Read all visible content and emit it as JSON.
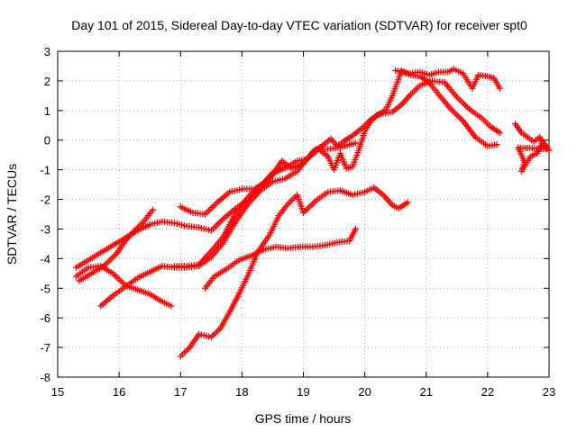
{
  "chart_data": {
    "type": "scatter",
    "title": "Day 101 of 2015, Sidereal Day-to-day VTEC variation (SDTVAR) for receiver spt0",
    "xlabel": "GPS time / hours",
    "ylabel": "SDTVAR / TECUs",
    "xlim": [
      15,
      23
    ],
    "ylim": [
      -8,
      3
    ],
    "xticks": [
      15,
      16,
      17,
      18,
      19,
      20,
      21,
      22,
      23
    ],
    "yticks": [
      -8,
      -7,
      -6,
      -5,
      -4,
      -3,
      -2,
      -1,
      0,
      1,
      2,
      3
    ],
    "grid": true,
    "marker": "plus",
    "color": "#ff0000",
    "series": [
      {
        "name": "track-a",
        "points": [
          [
            15.3,
            -4.6
          ],
          [
            15.5,
            -4.3
          ],
          [
            15.7,
            -4.25
          ],
          [
            15.9,
            -4.5
          ],
          [
            16.1,
            -4.9
          ],
          [
            16.3,
            -5.05
          ],
          [
            16.5,
            -5.2
          ],
          [
            16.7,
            -5.45
          ],
          [
            16.85,
            -5.6
          ]
        ]
      },
      {
        "name": "track-b",
        "points": [
          [
            15.3,
            -4.3
          ],
          [
            15.5,
            -4.05
          ],
          [
            15.7,
            -3.8
          ],
          [
            15.9,
            -3.55
          ],
          [
            16.1,
            -3.3
          ],
          [
            16.3,
            -3.05
          ],
          [
            16.5,
            -2.85
          ],
          [
            16.7,
            -2.75
          ],
          [
            16.9,
            -2.8
          ],
          [
            17.1,
            -2.9
          ],
          [
            17.3,
            -2.95
          ],
          [
            17.5,
            -3.05
          ],
          [
            17.7,
            -2.65
          ],
          [
            17.9,
            -2.3
          ],
          [
            18.1,
            -2.0
          ],
          [
            18.3,
            -1.6
          ],
          [
            18.5,
            -1.15
          ],
          [
            18.65,
            -0.7
          ],
          [
            18.8,
            -0.95
          ],
          [
            19.0,
            -0.8
          ],
          [
            19.15,
            -0.4
          ],
          [
            19.3,
            -0.2
          ],
          [
            19.45,
            0.05
          ],
          [
            19.55,
            -0.2
          ],
          [
            19.65,
            -0.05
          ],
          [
            19.8,
            0.15
          ],
          [
            19.95,
            0.4
          ],
          [
            20.1,
            0.7
          ],
          [
            20.25,
            0.9
          ],
          [
            20.35,
            1.05
          ],
          [
            20.45,
            1.5
          ],
          [
            20.6,
            2.35
          ],
          [
            20.75,
            2.2
          ],
          [
            20.9,
            2.15
          ],
          [
            21.05,
            1.95
          ],
          [
            21.2,
            1.55
          ],
          [
            21.4,
            1.05
          ],
          [
            21.6,
            0.65
          ],
          [
            21.8,
            0.1
          ],
          [
            22.0,
            -0.2
          ],
          [
            22.15,
            -0.15
          ]
        ]
      },
      {
        "name": "track-c",
        "points": [
          [
            15.35,
            -4.75
          ],
          [
            15.55,
            -4.5
          ],
          [
            15.75,
            -4.25
          ],
          [
            15.95,
            -3.85
          ],
          [
            16.1,
            -3.4
          ],
          [
            16.25,
            -3.05
          ],
          [
            16.4,
            -2.75
          ],
          [
            16.55,
            -2.35
          ]
        ]
      },
      {
        "name": "track-d",
        "points": [
          [
            17.0,
            -2.25
          ],
          [
            17.2,
            -2.45
          ],
          [
            17.4,
            -2.5
          ],
          [
            17.6,
            -2.1
          ],
          [
            17.8,
            -1.75
          ],
          [
            18.0,
            -1.65
          ],
          [
            18.2,
            -1.65
          ],
          [
            18.4,
            -1.4
          ],
          [
            18.55,
            -1.05
          ],
          [
            18.7,
            -0.9
          ]
        ]
      },
      {
        "name": "track-e",
        "points": [
          [
            16.9,
            -4.25
          ],
          [
            17.1,
            -4.25
          ],
          [
            17.3,
            -4.2
          ],
          [
            17.5,
            -3.75
          ],
          [
            17.7,
            -3.25
          ],
          [
            17.85,
            -2.65
          ],
          [
            18.05,
            -2.05
          ],
          [
            18.2,
            -1.7
          ],
          [
            18.35,
            -1.45
          ],
          [
            18.5,
            -1.1
          ],
          [
            18.7,
            -0.95
          ],
          [
            18.9,
            -0.7
          ],
          [
            19.05,
            -0.65
          ],
          [
            19.25,
            -0.3
          ],
          [
            19.4,
            -0.55
          ],
          [
            19.5,
            -1.0
          ],
          [
            19.6,
            -0.45
          ],
          [
            19.7,
            -0.95
          ],
          [
            19.8,
            -0.9
          ],
          [
            19.9,
            -0.35
          ],
          [
            20.0,
            0.3
          ],
          [
            20.1,
            0.65
          ],
          [
            20.2,
            0.85
          ],
          [
            20.3,
            0.9
          ],
          [
            20.45,
            0.95
          ],
          [
            20.6,
            1.2
          ],
          [
            20.75,
            1.55
          ],
          [
            20.9,
            1.85
          ],
          [
            21.1,
            2.0
          ],
          [
            21.3,
            1.95
          ],
          [
            21.5,
            1.45
          ],
          [
            21.7,
            1.05
          ],
          [
            21.9,
            0.75
          ],
          [
            22.05,
            0.45
          ],
          [
            22.2,
            0.25
          ]
        ]
      },
      {
        "name": "track-f",
        "points": [
          [
            15.7,
            -5.6
          ],
          [
            15.9,
            -5.25
          ],
          [
            16.1,
            -4.95
          ],
          [
            16.3,
            -4.65
          ],
          [
            16.5,
            -4.45
          ],
          [
            16.7,
            -4.25
          ],
          [
            16.9,
            -4.3
          ],
          [
            17.1,
            -4.3
          ],
          [
            17.3,
            -4.25
          ],
          [
            17.5,
            -3.95
          ],
          [
            17.7,
            -3.45
          ],
          [
            17.9,
            -2.75
          ],
          [
            18.1,
            -2.15
          ],
          [
            18.3,
            -1.7
          ],
          [
            18.5,
            -1.4
          ],
          [
            18.7,
            -1.3
          ],
          [
            18.9,
            -1.05
          ],
          [
            19.05,
            -0.65
          ],
          [
            19.2,
            -0.3
          ],
          [
            19.4,
            -0.3
          ],
          [
            19.6,
            -0.25
          ],
          [
            19.75,
            -0.15
          ],
          [
            19.85,
            -0.1
          ]
        ]
      },
      {
        "name": "track-g",
        "points": [
          [
            17.4,
            -5.0
          ],
          [
            17.55,
            -4.6
          ],
          [
            17.75,
            -4.35
          ],
          [
            17.95,
            -4.05
          ],
          [
            18.15,
            -3.9
          ],
          [
            18.35,
            -3.7
          ],
          [
            18.55,
            -3.6
          ],
          [
            18.75,
            -3.65
          ],
          [
            18.95,
            -3.6
          ],
          [
            19.15,
            -3.6
          ],
          [
            19.35,
            -3.55
          ],
          [
            19.55,
            -3.45
          ],
          [
            19.75,
            -3.4
          ],
          [
            19.85,
            -3.0
          ]
        ]
      },
      {
        "name": "track-h",
        "points": [
          [
            17.0,
            -7.3
          ],
          [
            17.15,
            -7.0
          ],
          [
            17.3,
            -6.55
          ],
          [
            17.5,
            -6.65
          ],
          [
            17.65,
            -6.35
          ],
          [
            17.8,
            -5.8
          ],
          [
            17.95,
            -5.2
          ],
          [
            18.1,
            -4.55
          ],
          [
            18.25,
            -3.8
          ],
          [
            18.45,
            -3.2
          ],
          [
            18.6,
            -2.55
          ],
          [
            18.75,
            -2.15
          ],
          [
            18.9,
            -1.85
          ],
          [
            19.0,
            -2.45
          ],
          [
            19.2,
            -2.05
          ],
          [
            19.4,
            -1.75
          ],
          [
            19.6,
            -1.7
          ],
          [
            19.8,
            -1.85
          ],
          [
            20.0,
            -1.75
          ],
          [
            20.15,
            -1.6
          ],
          [
            20.3,
            -1.85
          ],
          [
            20.45,
            -2.2
          ],
          [
            20.55,
            -2.3
          ],
          [
            20.7,
            -2.1
          ]
        ]
      },
      {
        "name": "track-i",
        "points": [
          [
            20.5,
            2.35
          ],
          [
            20.7,
            2.25
          ],
          [
            20.9,
            2.3
          ],
          [
            21.05,
            2.2
          ],
          [
            21.2,
            2.3
          ],
          [
            21.35,
            2.3
          ],
          [
            21.45,
            2.4
          ],
          [
            21.6,
            2.25
          ],
          [
            21.75,
            1.75
          ],
          [
            21.85,
            2.2
          ],
          [
            22.0,
            2.15
          ],
          [
            22.1,
            2.1
          ],
          [
            22.2,
            1.75
          ]
        ]
      },
      {
        "name": "track-j",
        "points": [
          [
            22.45,
            0.55
          ],
          [
            22.55,
            0.25
          ],
          [
            22.65,
            0.1
          ],
          [
            22.75,
            -0.05
          ],
          [
            22.85,
            0.1
          ],
          [
            22.95,
            -0.3
          ],
          [
            22.5,
            -0.25
          ],
          [
            22.6,
            -0.75
          ],
          [
            22.55,
            -1.05
          ],
          [
            22.7,
            -0.55
          ],
          [
            22.8,
            -0.45
          ],
          [
            22.9,
            -0.05
          ],
          [
            23.0,
            -0.35
          ]
        ]
      }
    ]
  }
}
